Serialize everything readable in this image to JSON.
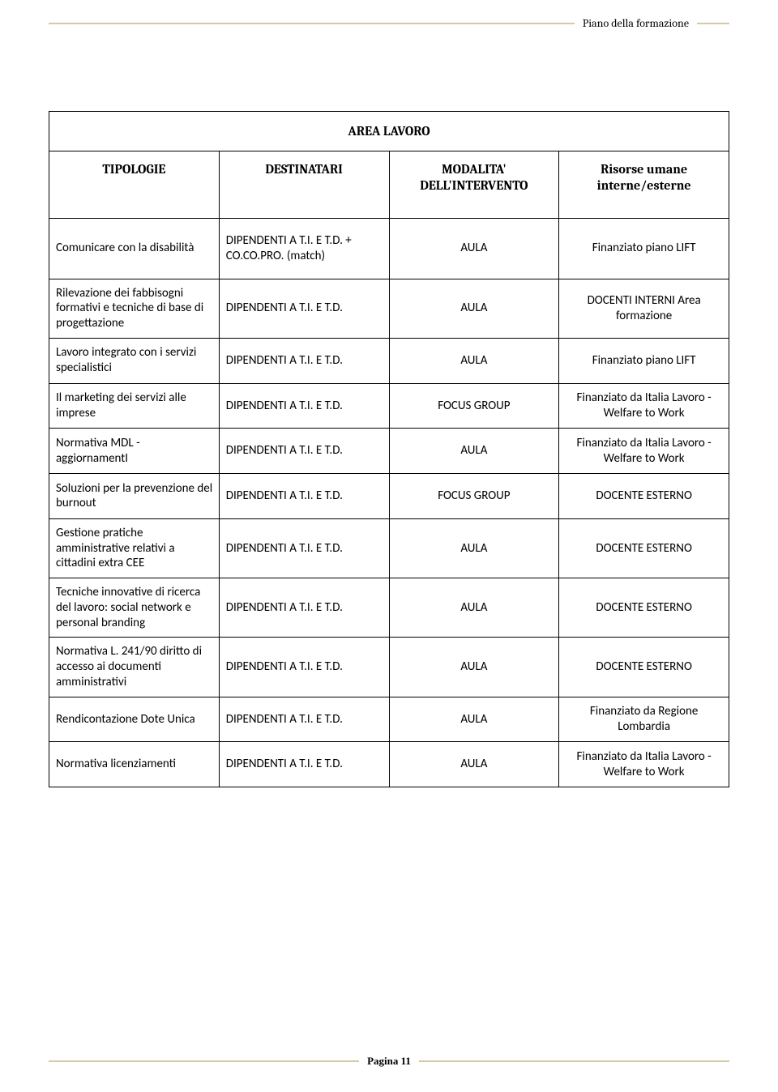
{
  "header": {
    "text": "Piano della formazione"
  },
  "table": {
    "title": "AREA LAVORO",
    "columns": {
      "c1": "TIPOLOGIE",
      "c2": "DESTINATARI",
      "c3": "MODALITA' DELL'INTERVENTO",
      "c4": "Risorse umane interne/esterne"
    },
    "rows": [
      {
        "c1": "Comunicare con la disabilità",
        "c2": "DIPENDENTI A T.I.  E  T.D. + CO.CO.PRO. (match)",
        "c3": "AULA",
        "c4": "Finanziato piano LIFT"
      },
      {
        "c1": "Rilevazione dei fabbisogni formativi e tecniche di base di progettazione",
        "c2": "DIPENDENTI A T.I.  E  T.D.",
        "c3": "AULA",
        "c4": "DOCENTI INTERNI Area formazione"
      },
      {
        "c1": "Lavoro integrato con i servizi specialistici",
        "c2": "DIPENDENTI A T.I.  E  T.D.",
        "c3": "AULA",
        "c4": "Finanziato piano LIFT"
      },
      {
        "c1": "Il marketing dei servizi alle imprese",
        "c2": "DIPENDENTI A T.I.  E  T.D.",
        "c3": "FOCUS GROUP",
        "c4": "Finanziato da Italia Lavoro - Welfare to Work"
      },
      {
        "c1": "Normativa MDL - aggiornamentI",
        "c2": "DIPENDENTI A T.I.  E  T.D.",
        "c3": "AULA",
        "c4": "Finanziato da Italia Lavoro - Welfare to Work"
      },
      {
        "c1": "Soluzioni per la prevenzione del burnout",
        "c2": "DIPENDENTI A T.I.  E  T.D.",
        "c3": "FOCUS GROUP",
        "c4": "DOCENTE ESTERNO"
      },
      {
        "c1": "Gestione pratiche amministrative relativi a cittadini extra CEE",
        "c2": "DIPENDENTI A T.I.  E  T.D.",
        "c3": "AULA",
        "c4": "DOCENTE ESTERNO"
      },
      {
        "c1": "Tecniche innovative di ricerca del lavoro: social network e personal branding",
        "c2": "DIPENDENTI A T.I.  E  T.D.",
        "c3": "AULA",
        "c4": "DOCENTE ESTERNO"
      },
      {
        "c1": "Normativa L. 241/90 diritto di accesso ai documenti amministrativi",
        "c2": "DIPENDENTI A T.I.  E  T.D.",
        "c3": "AULA",
        "c4": "DOCENTE ESTERNO"
      },
      {
        "c1": "Rendicontazione Dote Unica",
        "c2": "DIPENDENTI A T.I.  E  T.D.",
        "c3": "AULA",
        "c4": "Finanziato da Regione Lombardia"
      },
      {
        "c1": "Normativa licenziamenti",
        "c2": "DIPENDENTI A T.I.  E  T.D.",
        "c3": "AULA",
        "c4": "Finanziato da Italia Lavoro - Welfare to Work"
      }
    ]
  },
  "footer": {
    "text": "Pagina 11"
  },
  "colors": {
    "rule": "#d6c9a8",
    "text": "#000000",
    "border": "#000000",
    "background": "#ffffff"
  },
  "fonts": {
    "serif": "Cambria, 'Times New Roman', serif",
    "sans": "Calibri, 'Segoe UI', Arial, sans-serif"
  }
}
